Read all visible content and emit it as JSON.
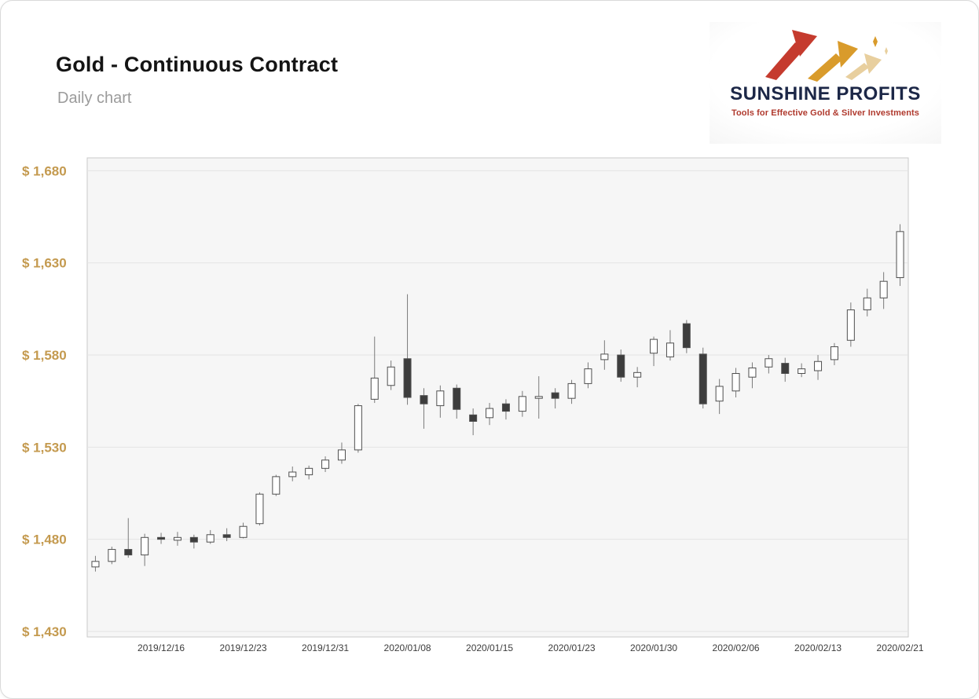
{
  "header": {
    "title": "Gold - Continuous Contract",
    "subtitle": "Daily chart"
  },
  "logo": {
    "title": "SUNSHINE PROFITS",
    "tagline": "Tools for Effective Gold & Silver Investments"
  },
  "colors": {
    "axis_label": "#c49a4f",
    "x_label": "#3c3c3c",
    "grid_line": "#e3e3e3",
    "plot_bg": "#f6f6f6",
    "plot_border": "#c9c9c9",
    "bull_fill": "#ffffff",
    "bear_fill": "#3d3d3d",
    "candle_border": "#4f4f4f",
    "wick": "#7a7a7a",
    "logo_navy": "#1c2747",
    "logo_red": "#c53b2e",
    "logo_gold": "#d99b2b",
    "logo_pale_gold": "#e8cf9e"
  },
  "chart_data": {
    "type": "candlestick",
    "title": "Gold - Continuous Contract",
    "subtitle": "Daily chart",
    "grid": true,
    "ylim": [
      1427,
      1687
    ],
    "yticks": [
      {
        "value": 1680,
        "label": "$ 1,680"
      },
      {
        "value": 1630,
        "label": "$ 1,630"
      },
      {
        "value": 1580,
        "label": "$ 1,580"
      },
      {
        "value": 1530,
        "label": "$ 1,530"
      },
      {
        "value": 1480,
        "label": "$ 1,480"
      },
      {
        "value": 1430,
        "label": "$ 1,430"
      }
    ],
    "xticks": [
      {
        "index": 4,
        "label": "2019/12/16"
      },
      {
        "index": 9,
        "label": "2019/12/23"
      },
      {
        "index": 14,
        "label": "2019/12/31"
      },
      {
        "index": 19,
        "label": "2020/01/08"
      },
      {
        "index": 24,
        "label": "2020/01/15"
      },
      {
        "index": 29,
        "label": "2020/01/23"
      },
      {
        "index": 34,
        "label": "2020/01/30"
      },
      {
        "index": 39,
        "label": "2020/02/06"
      },
      {
        "index": 44,
        "label": "2020/02/13"
      },
      {
        "index": 49,
        "label": "2020/02/21"
      }
    ],
    "candles": [
      {
        "date": "2019/12/10",
        "o": 1465.0,
        "h": 1471.0,
        "l": 1462.5,
        "c": 1468.0
      },
      {
        "date": "2019/12/11",
        "o": 1468.0,
        "h": 1476.0,
        "l": 1466.5,
        "c": 1474.5
      },
      {
        "date": "2019/12/12",
        "o": 1474.5,
        "h": 1491.5,
        "l": 1470.0,
        "c": 1471.5
      },
      {
        "date": "2019/12/13",
        "o": 1471.5,
        "h": 1483.0,
        "l": 1465.5,
        "c": 1481.0
      },
      {
        "date": "2019/12/16",
        "o": 1481.0,
        "h": 1483.5,
        "l": 1477.5,
        "c": 1480.0
      },
      {
        "date": "2019/12/17",
        "o": 1479.5,
        "h": 1484.0,
        "l": 1476.5,
        "c": 1481.0
      },
      {
        "date": "2019/12/18",
        "o": 1481.0,
        "h": 1482.5,
        "l": 1475.0,
        "c": 1478.5
      },
      {
        "date": "2019/12/19",
        "o": 1478.5,
        "h": 1485.0,
        "l": 1477.5,
        "c": 1482.5
      },
      {
        "date": "2019/12/20",
        "o": 1482.5,
        "h": 1486.0,
        "l": 1479.0,
        "c": 1481.0
      },
      {
        "date": "2019/12/23",
        "o": 1481.0,
        "h": 1489.0,
        "l": 1480.5,
        "c": 1487.0
      },
      {
        "date": "2019/12/24",
        "o": 1488.5,
        "h": 1505.5,
        "l": 1487.5,
        "c": 1504.5
      },
      {
        "date": "2019/12/26",
        "o": 1504.5,
        "h": 1515.0,
        "l": 1503.5,
        "c": 1514.0
      },
      {
        "date": "2019/12/27",
        "o": 1514.0,
        "h": 1519.5,
        "l": 1511.5,
        "c": 1516.5
      },
      {
        "date": "2019/12/30",
        "o": 1515.0,
        "h": 1520.0,
        "l": 1512.5,
        "c": 1518.5
      },
      {
        "date": "2019/12/31",
        "o": 1518.5,
        "h": 1525.0,
        "l": 1516.5,
        "c": 1523.0
      },
      {
        "date": "2020/01/02",
        "o": 1523.0,
        "h": 1532.5,
        "l": 1521.0,
        "c": 1528.5
      },
      {
        "date": "2020/01/03",
        "o": 1528.5,
        "h": 1553.5,
        "l": 1527.0,
        "c": 1552.5
      },
      {
        "date": "2020/01/06",
        "o": 1556.0,
        "h": 1590.0,
        "l": 1554.0,
        "c": 1567.5
      },
      {
        "date": "2020/01/07",
        "o": 1563.5,
        "h": 1577.0,
        "l": 1561.0,
        "c": 1573.5
      },
      {
        "date": "2020/01/08",
        "o": 1578.0,
        "h": 1613.0,
        "l": 1553.0,
        "c": 1557.0
      },
      {
        "date": "2020/01/09",
        "o": 1558.0,
        "h": 1562.0,
        "l": 1540.0,
        "c": 1553.5
      },
      {
        "date": "2020/01/10",
        "o": 1552.5,
        "h": 1563.5,
        "l": 1546.0,
        "c": 1560.5
      },
      {
        "date": "2020/01/13",
        "o": 1562.0,
        "h": 1564.0,
        "l": 1545.5,
        "c": 1550.5
      },
      {
        "date": "2020/01/14",
        "o": 1547.5,
        "h": 1551.0,
        "l": 1536.5,
        "c": 1544.0
      },
      {
        "date": "2020/01/15",
        "o": 1546.0,
        "h": 1554.0,
        "l": 1542.0,
        "c": 1551.0
      },
      {
        "date": "2020/01/16",
        "o": 1553.5,
        "h": 1556.0,
        "l": 1545.0,
        "c": 1549.5
      },
      {
        "date": "2020/01/17",
        "o": 1549.5,
        "h": 1560.5,
        "l": 1546.5,
        "c": 1557.5
      },
      {
        "date": "2020/01/21",
        "o": 1556.5,
        "h": 1568.5,
        "l": 1545.5,
        "c": 1557.5
      },
      {
        "date": "2020/01/22",
        "o": 1559.5,
        "h": 1562.0,
        "l": 1551.0,
        "c": 1556.5
      },
      {
        "date": "2020/01/23",
        "o": 1556.5,
        "h": 1566.5,
        "l": 1553.5,
        "c": 1564.5
      },
      {
        "date": "2020/01/24",
        "o": 1564.5,
        "h": 1576.0,
        "l": 1562.0,
        "c": 1572.5
      },
      {
        "date": "2020/01/27",
        "o": 1577.5,
        "h": 1588.0,
        "l": 1572.0,
        "c": 1580.5
      },
      {
        "date": "2020/01/28",
        "o": 1580.0,
        "h": 1583.0,
        "l": 1565.5,
        "c": 1568.0
      },
      {
        "date": "2020/01/29",
        "o": 1568.0,
        "h": 1573.5,
        "l": 1562.5,
        "c": 1570.5
      },
      {
        "date": "2020/01/30",
        "o": 1581.0,
        "h": 1590.0,
        "l": 1574.0,
        "c": 1588.5
      },
      {
        "date": "2020/01/31",
        "o": 1579.0,
        "h": 1593.5,
        "l": 1577.0,
        "c": 1586.5
      },
      {
        "date": "2020/02/03",
        "o": 1597.0,
        "h": 1599.0,
        "l": 1581.0,
        "c": 1584.0
      },
      {
        "date": "2020/02/04",
        "o": 1580.5,
        "h": 1584.0,
        "l": 1551.0,
        "c": 1553.5
      },
      {
        "date": "2020/02/05",
        "o": 1555.0,
        "h": 1567.0,
        "l": 1548.0,
        "c": 1563.0
      },
      {
        "date": "2020/02/06",
        "o": 1560.5,
        "h": 1573.0,
        "l": 1557.0,
        "c": 1570.0
      },
      {
        "date": "2020/02/07",
        "o": 1568.0,
        "h": 1576.0,
        "l": 1562.0,
        "c": 1573.0
      },
      {
        "date": "2020/02/10",
        "o": 1573.5,
        "h": 1580.0,
        "l": 1570.0,
        "c": 1578.0
      },
      {
        "date": "2020/02/11",
        "o": 1575.5,
        "h": 1578.5,
        "l": 1565.5,
        "c": 1570.0
      },
      {
        "date": "2020/02/12",
        "o": 1570.0,
        "h": 1575.5,
        "l": 1568.0,
        "c": 1572.5
      },
      {
        "date": "2020/02/13",
        "o": 1571.5,
        "h": 1580.0,
        "l": 1566.5,
        "c": 1576.5
      },
      {
        "date": "2020/02/14",
        "o": 1577.5,
        "h": 1586.5,
        "l": 1574.5,
        "c": 1584.5
      },
      {
        "date": "2020/02/18",
        "o": 1588.0,
        "h": 1608.5,
        "l": 1584.5,
        "c": 1604.5
      },
      {
        "date": "2020/02/19",
        "o": 1604.5,
        "h": 1616.0,
        "l": 1601.0,
        "c": 1611.0
      },
      {
        "date": "2020/02/20",
        "o": 1611.0,
        "h": 1625.0,
        "l": 1605.0,
        "c": 1620.0
      },
      {
        "date": "2020/02/21",
        "o": 1622.0,
        "h": 1651.0,
        "l": 1617.5,
        "c": 1647.0
      }
    ]
  }
}
